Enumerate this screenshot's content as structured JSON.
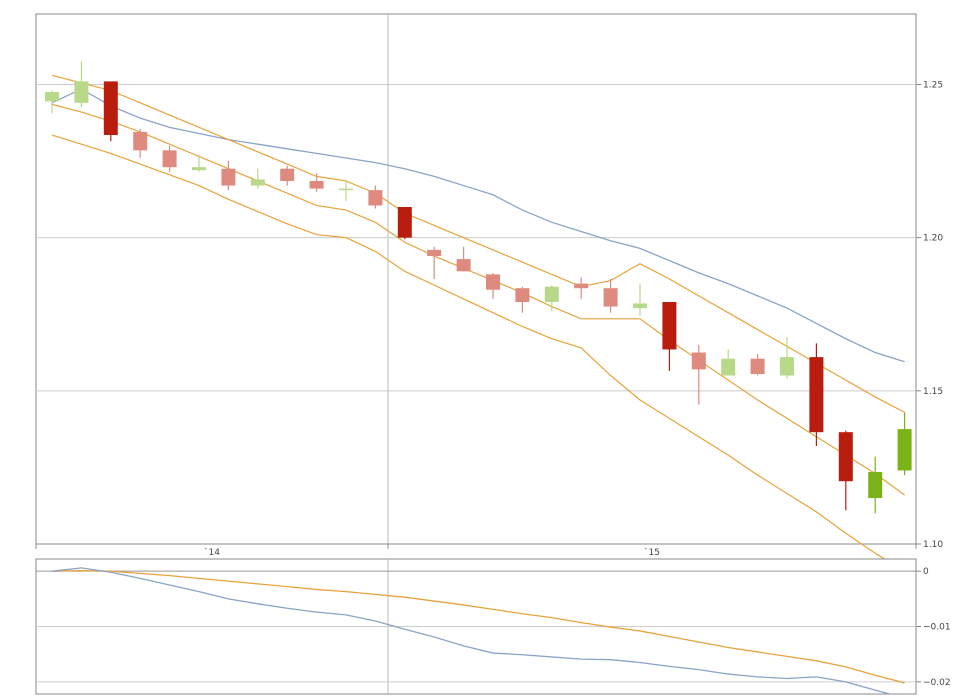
{
  "chart_data": [
    {
      "type": "candlestick",
      "title": "",
      "xlabel": "",
      "ylabel": "",
      "x_tick_labels": [
        "`14",
        "`15"
      ],
      "y_ticks": [
        1.1,
        1.15,
        1.2,
        1.25
      ],
      "y_tick_labels": [
        "1.10",
        "1.15",
        "1.20",
        "1.25"
      ],
      "ylim": [
        1.1,
        1.273
      ],
      "grid": true,
      "colors": {
        "up_light": "#b8d98a",
        "up_strong": "#7ab317",
        "down_light": "#de8a7e",
        "down_strong": "#b81d0e",
        "envelope": "#e8a33c",
        "moving_average": "#8aa4c8",
        "grid": "#cccccc",
        "axis": "#888888"
      },
      "candles": [
        {
          "o": 1.2445,
          "h": 1.248,
          "l": 1.2405,
          "c": 1.2475,
          "strong": false
        },
        {
          "o": 1.244,
          "h": 1.2575,
          "l": 1.2425,
          "c": 1.251,
          "strong": false
        },
        {
          "o": 1.251,
          "h": 1.251,
          "l": 1.2315,
          "c": 1.2335,
          "strong": true
        },
        {
          "o": 1.2345,
          "h": 1.2355,
          "l": 1.226,
          "c": 1.2285,
          "strong": false
        },
        {
          "o": 1.2285,
          "h": 1.23,
          "l": 1.2215,
          "c": 1.223,
          "strong": false
        },
        {
          "o": 1.222,
          "h": 1.227,
          "l": 1.2215,
          "c": 1.223,
          "strong": false
        },
        {
          "o": 1.2225,
          "h": 1.225,
          "l": 1.2155,
          "c": 1.217,
          "strong": false
        },
        {
          "o": 1.217,
          "h": 1.2225,
          "l": 1.216,
          "c": 1.219,
          "strong": false
        },
        {
          "o": 1.2225,
          "h": 1.2235,
          "l": 1.217,
          "c": 1.2185,
          "strong": false
        },
        {
          "o": 1.2185,
          "h": 1.221,
          "l": 1.215,
          "c": 1.216,
          "strong": false
        },
        {
          "o": 1.2155,
          "h": 1.219,
          "l": 1.212,
          "c": 1.216,
          "strong": false
        },
        {
          "o": 1.2155,
          "h": 1.217,
          "l": 1.2095,
          "c": 1.2105,
          "strong": false
        },
        {
          "o": 1.21,
          "h": 1.21,
          "l": 1.1995,
          "c": 1.2,
          "strong": true
        },
        {
          "o": 1.196,
          "h": 1.197,
          "l": 1.1865,
          "c": 1.194,
          "strong": false
        },
        {
          "o": 1.193,
          "h": 1.197,
          "l": 1.189,
          "c": 1.189,
          "strong": false
        },
        {
          "o": 1.188,
          "h": 1.1885,
          "l": 1.18,
          "c": 1.183,
          "strong": false
        },
        {
          "o": 1.1835,
          "h": 1.184,
          "l": 1.1755,
          "c": 1.179,
          "strong": false
        },
        {
          "o": 1.179,
          "h": 1.1845,
          "l": 1.176,
          "c": 1.184,
          "strong": false
        },
        {
          "o": 1.185,
          "h": 1.187,
          "l": 1.18,
          "c": 1.1835,
          "strong": false
        },
        {
          "o": 1.1835,
          "h": 1.1865,
          "l": 1.1755,
          "c": 1.1775,
          "strong": false
        },
        {
          "o": 1.177,
          "h": 1.185,
          "l": 1.1745,
          "c": 1.1785,
          "strong": false
        },
        {
          "o": 1.179,
          "h": 1.179,
          "l": 1.1565,
          "c": 1.1635,
          "strong": true
        },
        {
          "o": 1.1625,
          "h": 1.165,
          "l": 1.1455,
          "c": 1.157,
          "strong": false
        },
        {
          "o": 1.155,
          "h": 1.1635,
          "l": 1.155,
          "c": 1.1605,
          "strong": false
        },
        {
          "o": 1.1605,
          "h": 1.162,
          "l": 1.155,
          "c": 1.1555,
          "strong": false
        },
        {
          "o": 1.155,
          "h": 1.1675,
          "l": 1.154,
          "c": 1.161,
          "strong": false
        },
        {
          "o": 1.161,
          "h": 1.1655,
          "l": 1.132,
          "c": 1.1365,
          "strong": true
        },
        {
          "o": 1.1365,
          "h": 1.137,
          "l": 1.111,
          "c": 1.1205,
          "strong": true
        },
        {
          "o": 1.115,
          "h": 1.1285,
          "l": 1.11,
          "c": 1.1235,
          "strong": true
        },
        {
          "o": 1.124,
          "h": 1.143,
          "l": 1.1225,
          "c": 1.1375,
          "strong": true
        }
      ],
      "envelope_upper": [
        1.253,
        1.2505,
        1.248,
        1.244,
        1.24,
        1.236,
        1.232,
        1.228,
        1.224,
        1.22,
        1.2185,
        1.2145,
        1.208,
        1.204,
        1.2,
        1.196,
        1.192,
        1.188,
        1.184,
        1.186,
        1.1915,
        1.1865,
        1.181,
        1.1755,
        1.17,
        1.1645,
        1.159,
        1.1535,
        1.148,
        1.143
      ],
      "envelope_middle": [
        1.2435,
        1.241,
        1.238,
        1.2345,
        1.2305,
        1.2265,
        1.2225,
        1.2185,
        1.2145,
        1.2105,
        1.209,
        1.205,
        1.1985,
        1.194,
        1.19,
        1.186,
        1.182,
        1.1775,
        1.1735,
        1.1735,
        1.1735,
        1.1665,
        1.16,
        1.1535,
        1.147,
        1.141,
        1.135,
        1.129,
        1.123,
        1.116
      ],
      "envelope_lower": [
        1.2335,
        1.2305,
        1.2275,
        1.224,
        1.2205,
        1.217,
        1.2125,
        1.2085,
        1.2045,
        1.201,
        1.2,
        1.1955,
        1.189,
        1.1845,
        1.18,
        1.1755,
        1.171,
        1.167,
        1.164,
        1.155,
        1.147,
        1.141,
        1.135,
        1.129,
        1.1225,
        1.1165,
        1.1105,
        1.1035,
        1.097,
        1.091
      ],
      "moving_average": [
        1.244,
        1.2485,
        1.243,
        1.239,
        1.236,
        1.234,
        1.232,
        1.2305,
        1.229,
        1.2275,
        1.226,
        1.2245,
        1.2225,
        1.22,
        1.217,
        1.214,
        1.209,
        1.205,
        1.202,
        1.199,
        1.1965,
        1.1925,
        1.1885,
        1.185,
        1.181,
        1.177,
        1.172,
        1.167,
        1.1625,
        1.1595
      ]
    },
    {
      "type": "line",
      "title": "",
      "xlabel": "",
      "ylabel": "",
      "y_ticks": [
        0,
        -0.01,
        -0.02
      ],
      "y_tick_labels": [
        "0",
        "−0.01",
        "−0.02"
      ],
      "ylim": [
        -0.0222,
        0.0022
      ],
      "grid": true,
      "series": [
        {
          "color": "#e8a33c",
          "values": [
            0.0,
            0.0001,
            0.0,
            -0.0004,
            -0.0008,
            -0.0013,
            -0.0018,
            -0.0023,
            -0.0028,
            -0.0033,
            -0.0037,
            -0.0042,
            -0.0047,
            -0.0054,
            -0.0061,
            -0.0069,
            -0.0077,
            -0.0084,
            -0.0093,
            -0.0101,
            -0.0108,
            -0.0118,
            -0.0128,
            -0.0138,
            -0.0146,
            -0.0154,
            -0.0162,
            -0.0173,
            -0.0188,
            -0.0202
          ]
        },
        {
          "color": "#8aa4c8",
          "values": [
            0.0,
            0.0006,
            -0.0002,
            -0.0013,
            -0.0025,
            -0.0037,
            -0.005,
            -0.0059,
            -0.0067,
            -0.0074,
            -0.0079,
            -0.009,
            -0.0105,
            -0.0119,
            -0.0135,
            -0.0148,
            -0.0151,
            -0.0155,
            -0.0159,
            -0.016,
            -0.0165,
            -0.0172,
            -0.0178,
            -0.0186,
            -0.0191,
            -0.0194,
            -0.0191,
            -0.02,
            -0.0215,
            -0.0229
          ]
        }
      ]
    }
  ]
}
